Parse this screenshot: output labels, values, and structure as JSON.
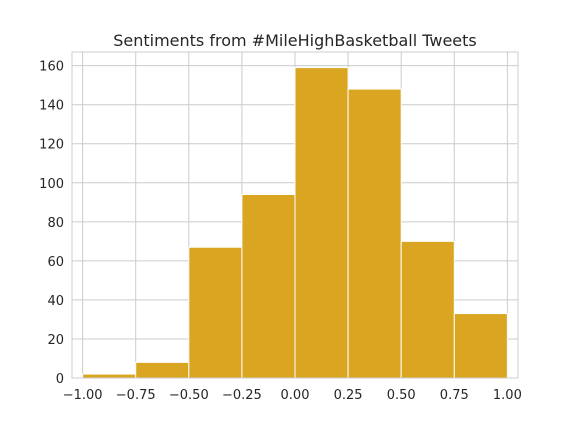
{
  "chart_data": {
    "type": "bar",
    "title": "Sentiments from #MileHighBasketball Tweets",
    "xlabel": "",
    "ylabel": "",
    "bins": [
      {
        "x0": -1.0,
        "x1": -0.75,
        "count": 2
      },
      {
        "x0": -0.75,
        "x1": -0.5,
        "count": 8
      },
      {
        "x0": -0.5,
        "x1": -0.25,
        "count": 67
      },
      {
        "x0": -0.25,
        "x1": 0.0,
        "count": 94
      },
      {
        "x0": 0.0,
        "x1": 0.25,
        "count": 159
      },
      {
        "x0": 0.25,
        "x1": 0.5,
        "count": 148
      },
      {
        "x0": 0.5,
        "x1": 0.75,
        "count": 70
      },
      {
        "x0": 0.75,
        "x1": 1.0,
        "count": 33
      }
    ],
    "xlim": [
      -1.05,
      1.05
    ],
    "ylim": [
      0,
      167
    ],
    "xticks": [
      -1.0,
      -0.75,
      -0.5,
      -0.25,
      0.0,
      0.25,
      0.5,
      0.75,
      1.0
    ],
    "xtick_labels": [
      "−1.00",
      "−0.75",
      "−0.50",
      "−0.25",
      "0.00",
      "0.25",
      "0.50",
      "0.75",
      "1.00"
    ],
    "yticks": [
      0,
      20,
      40,
      60,
      80,
      100,
      120,
      140,
      160
    ],
    "ytick_labels": [
      "0",
      "20",
      "40",
      "60",
      "80",
      "100",
      "120",
      "140",
      "160"
    ],
    "grid": true,
    "bar_color": "#DAA520",
    "grid_color": "#cccccc",
    "frame_color": "#cccccc"
  }
}
